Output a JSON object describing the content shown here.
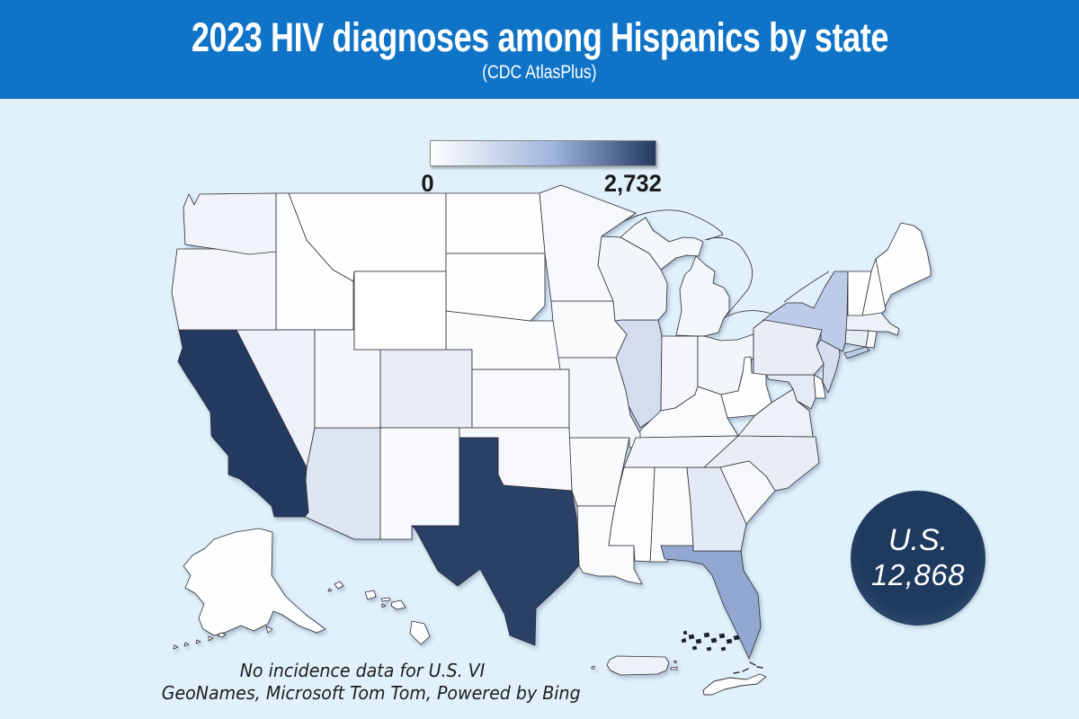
{
  "header": {
    "title": "2023 HIV diagnoses among Hispanics by state",
    "subtitle": "(CDC AtlasPlus)",
    "background_color": "#0f73c8"
  },
  "legend": {
    "min_label": "0",
    "max_label": "2,732",
    "gradient_start": "#ffffff",
    "gradient_mid": "#9fb4dc",
    "gradient_end": "#24395f"
  },
  "us_total_badge": {
    "label": "U.S.",
    "value": "12,868",
    "color": "#1e3a5f"
  },
  "footnotes": {
    "line1": "No incidence data for U.S. VI",
    "line2": "GeoNames, Microsoft Tom Tom, Powered by Bing"
  },
  "chart_data": {
    "type": "heatmap",
    "subtype": "choropleth-us-states",
    "title": "2023 HIV diagnoses among Hispanics by state",
    "source_note": "(CDC AtlasPlus)",
    "us_total": 12868,
    "color_scale": {
      "min": 0,
      "max": 2732,
      "min_color": "#ffffff",
      "max_color": "#24395f"
    },
    "no_data_note": "No incidence data for U.S. VI",
    "values_are_estimates_from_color": true,
    "states": [
      {
        "abbr": "AL",
        "name": "Alabama",
        "value": 60
      },
      {
        "abbr": "AK",
        "name": "Alaska",
        "value": 25
      },
      {
        "abbr": "AZ",
        "name": "Arizona",
        "value": 450
      },
      {
        "abbr": "AR",
        "name": "Arkansas",
        "value": 100
      },
      {
        "abbr": "CA",
        "name": "California",
        "value": 2732
      },
      {
        "abbr": "CO",
        "name": "Colorado",
        "value": 320
      },
      {
        "abbr": "CT",
        "name": "Connecticut",
        "value": 350
      },
      {
        "abbr": "DE",
        "name": "Delaware",
        "value": 60
      },
      {
        "abbr": "FL",
        "name": "Florida",
        "value": 1500
      },
      {
        "abbr": "GA",
        "name": "Georgia",
        "value": 400
      },
      {
        "abbr": "HI",
        "name": "Hawaii",
        "value": 40
      },
      {
        "abbr": "ID",
        "name": "Idaho",
        "value": 40
      },
      {
        "abbr": "IL",
        "name": "Illinois",
        "value": 620
      },
      {
        "abbr": "IN",
        "name": "Indiana",
        "value": 160
      },
      {
        "abbr": "IA",
        "name": "Iowa",
        "value": 100
      },
      {
        "abbr": "KS",
        "name": "Kansas",
        "value": 110
      },
      {
        "abbr": "KY",
        "name": "Kentucky",
        "value": 80
      },
      {
        "abbr": "LA",
        "name": "Louisiana",
        "value": 70
      },
      {
        "abbr": "ME",
        "name": "Maine",
        "value": 15
      },
      {
        "abbr": "MD",
        "name": "Maryland",
        "value": 370
      },
      {
        "abbr": "MA",
        "name": "Massachusetts",
        "value": 260
      },
      {
        "abbr": "MI",
        "name": "Michigan",
        "value": 170
      },
      {
        "abbr": "MN",
        "name": "Minnesota",
        "value": 130
      },
      {
        "abbr": "MS",
        "name": "Mississippi",
        "value": 30
      },
      {
        "abbr": "MO",
        "name": "Missouri",
        "value": 150
      },
      {
        "abbr": "MT",
        "name": "Montana",
        "value": 10
      },
      {
        "abbr": "NE",
        "name": "Nebraska",
        "value": 50
      },
      {
        "abbr": "NV",
        "name": "Nevada",
        "value": 250
      },
      {
        "abbr": "NH",
        "name": "New Hampshire",
        "value": 20
      },
      {
        "abbr": "NJ",
        "name": "New Jersey",
        "value": 600
      },
      {
        "abbr": "NM",
        "name": "New Mexico",
        "value": 90
      },
      {
        "abbr": "NY",
        "name": "New York",
        "value": 950
      },
      {
        "abbr": "NC",
        "name": "North Carolina",
        "value": 330
      },
      {
        "abbr": "ND",
        "name": "North Dakota",
        "value": 20
      },
      {
        "abbr": "OH",
        "name": "Ohio",
        "value": 180
      },
      {
        "abbr": "OK",
        "name": "Oklahoma",
        "value": 120
      },
      {
        "abbr": "OR",
        "name": "Oregon",
        "value": 160
      },
      {
        "abbr": "PA",
        "name": "Pennsylvania",
        "value": 330
      },
      {
        "abbr": "RI",
        "name": "Rhode Island",
        "value": 80
      },
      {
        "abbr": "SC",
        "name": "South Carolina",
        "value": 120
      },
      {
        "abbr": "SD",
        "name": "South Dakota",
        "value": 30
      },
      {
        "abbr": "TN",
        "name": "Tennessee",
        "value": 200
      },
      {
        "abbr": "TX",
        "name": "Texas",
        "value": 2650
      },
      {
        "abbr": "UT",
        "name": "Utah",
        "value": 150
      },
      {
        "abbr": "VT",
        "name": "Vermont",
        "value": 5
      },
      {
        "abbr": "VA",
        "name": "Virginia",
        "value": 260
      },
      {
        "abbr": "WA",
        "name": "Washington",
        "value": 220
      },
      {
        "abbr": "WV",
        "name": "West Virginia",
        "value": 10
      },
      {
        "abbr": "WI",
        "name": "Wisconsin",
        "value": 190
      },
      {
        "abbr": "WY",
        "name": "Wyoming",
        "value": 5
      },
      {
        "abbr": "PR",
        "name": "Puerto Rico",
        "value": 250
      }
    ]
  }
}
